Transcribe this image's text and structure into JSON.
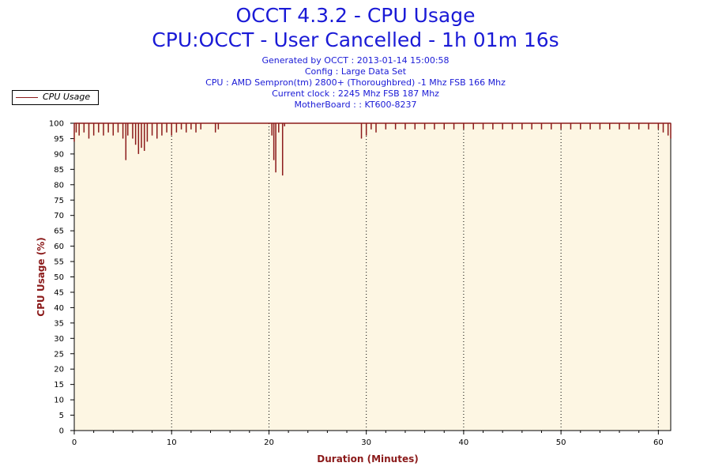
{
  "header": {
    "title": "OCCT 4.3.2 - CPU Usage",
    "subtitle": "CPU:OCCT - User Cancelled - 1h 01m 16s",
    "info_lines": [
      "Generated by OCCT : 2013-01-14 15:00:58",
      "Config : Large Data Set",
      "CPU : AMD Sempron(tm) 2800+ (Thoroughbred) -1 Mhz FSB 166 Mhz",
      "Current clock : 2245 Mhz FSB 187 Mhz",
      "MotherBoard : : KT600-8237"
    ]
  },
  "legend": {
    "label": "CPU Usage"
  },
  "colors": {
    "series": "#8b1a1a",
    "plot_bg": "#fdf6e3",
    "axis_label": "#8b1a1a",
    "title": "#1a1ad6"
  },
  "chart_data": {
    "type": "line",
    "xlabel": "Duration (Minutes)",
    "ylabel": "CPU Usage (%)",
    "xlim": [
      0,
      61.27
    ],
    "ylim": [
      0,
      100
    ],
    "x_ticks": [
      "0",
      "10",
      "20",
      "30",
      "40",
      "50",
      "60"
    ],
    "y_ticks": [
      "0",
      "5",
      "10",
      "15",
      "20",
      "25",
      "30",
      "35",
      "40",
      "45",
      "50",
      "55",
      "60",
      "65",
      "70",
      "75",
      "80",
      "85",
      "90",
      "95",
      "100"
    ],
    "grid": "vertical dotted at 10-minute intervals",
    "series": [
      {
        "name": "CPU Usage",
        "baseline": 100,
        "x": [
          0,
          0.2,
          0.5,
          1,
          1.5,
          2,
          2.5,
          3,
          3.5,
          4,
          4.5,
          5,
          5.3,
          5.5,
          6,
          6.3,
          6.6,
          6.9,
          7.2,
          7.5,
          8,
          8.5,
          9,
          9.5,
          10,
          10.5,
          11,
          11.5,
          12,
          12.5,
          13,
          14,
          14.5,
          14.8,
          15,
          16,
          17,
          18,
          19,
          20,
          20.3,
          20.5,
          20.7,
          21,
          21.4,
          21.6,
          22,
          23,
          24,
          25,
          26,
          27,
          28,
          29,
          29.5,
          30,
          30.5,
          31,
          32,
          33,
          34,
          35,
          36,
          37,
          38,
          39,
          40,
          41,
          42,
          43,
          44,
          45,
          46,
          47,
          48,
          49,
          50,
          51,
          52,
          53,
          54,
          55,
          56,
          57,
          58,
          59,
          60,
          60.5,
          61,
          61.27
        ],
        "dips": [
          94,
          97,
          96,
          97,
          95,
          96,
          97,
          96,
          97,
          96,
          97,
          95,
          88,
          96,
          95,
          93,
          90,
          92,
          91,
          94,
          96,
          95,
          96,
          97,
          96,
          97,
          98,
          97,
          98,
          97,
          98,
          100,
          97,
          98,
          100,
          100,
          100,
          100,
          100,
          100,
          96,
          88,
          84,
          97,
          83,
          99,
          100,
          100,
          100,
          100,
          100,
          100,
          100,
          100,
          95,
          96,
          98,
          97,
          98,
          98,
          98,
          98,
          98,
          98,
          98,
          98,
          98,
          98,
          98,
          98,
          98,
          98,
          98,
          98,
          98,
          98,
          98,
          98,
          98,
          98,
          98,
          98,
          98,
          98,
          98,
          98,
          98,
          97,
          96,
          95
        ]
      }
    ]
  }
}
